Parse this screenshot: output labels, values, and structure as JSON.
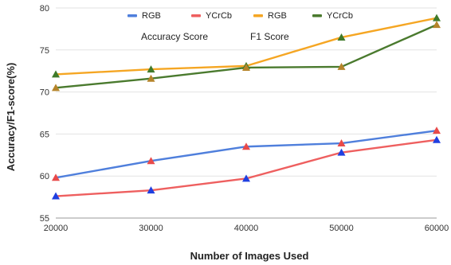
{
  "chart_data": {
    "type": "line",
    "title": "",
    "xlabel": "Number of Images Used",
    "ylabel": "Accuracy/F1-score(%)",
    "x": [
      20000,
      30000,
      40000,
      50000,
      60000
    ],
    "xlim": [
      20000,
      60000
    ],
    "ylim": [
      55,
      80
    ],
    "yticks": [
      55,
      60,
      65,
      70,
      75,
      80
    ],
    "grid": true,
    "legend_position": "top-center",
    "group_labels": [
      "Accuracy Score",
      "F1 Score"
    ],
    "series": [
      {
        "name": "RGB",
        "group": "Accuracy Score",
        "color": "#4f7fdc",
        "values": [
          59.8,
          61.8,
          63.5,
          63.9,
          65.4
        ],
        "marker": "triangle",
        "marker_color": "#e84a4a"
      },
      {
        "name": "YCrCb",
        "group": "Accuracy Score",
        "color": "#ee5f5f",
        "values": [
          57.6,
          58.3,
          59.7,
          62.8,
          64.3
        ],
        "marker": "triangle",
        "marker_color": "#1f3fe0"
      },
      {
        "name": "RGB",
        "group": "F1 Score",
        "color": "#f5a623",
        "values": [
          72.1,
          72.7,
          73.1,
          76.5,
          78.8
        ],
        "marker": "triangle",
        "marker_color": "#3f7a2a"
      },
      {
        "name": "YCrCb",
        "group": "F1 Score",
        "color": "#4a7a2e",
        "values": [
          70.5,
          71.6,
          72.9,
          73.0,
          78.0
        ],
        "marker": "triangle",
        "marker_color": "#b5842a"
      }
    ]
  }
}
